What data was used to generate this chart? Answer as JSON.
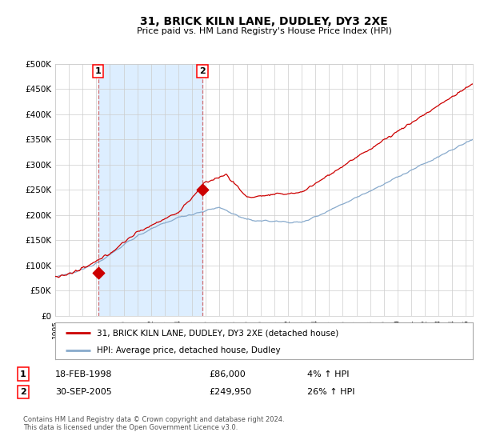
{
  "title": "31, BRICK KILN LANE, DUDLEY, DY3 2XE",
  "subtitle": "Price paid vs. HM Land Registry's House Price Index (HPI)",
  "purchase1_date": 1998.13,
  "purchase1_price": 86000,
  "purchase1_label": "1",
  "purchase1_text": "18-FEB-1998",
  "purchase1_amount": "£86,000",
  "purchase1_hpi": "4% ↑ HPI",
  "purchase2_date": 2005.75,
  "purchase2_price": 249950,
  "purchase2_label": "2",
  "purchase2_text": "30-SEP-2005",
  "purchase2_amount": "£249,950",
  "purchase2_hpi": "26% ↑ HPI",
  "legend_property": "31, BRICK KILN LANE, DUDLEY, DY3 2XE (detached house)",
  "legend_hpi": "HPI: Average price, detached house, Dudley",
  "footer": "Contains HM Land Registry data © Crown copyright and database right 2024.\nThis data is licensed under the Open Government Licence v3.0.",
  "red_color": "#cc0000",
  "blue_color": "#88aacc",
  "shade_color": "#ddeeff",
  "background_color": "#ffffff",
  "grid_color": "#cccccc",
  "ylim": [
    0,
    500000
  ],
  "xlim": [
    1995.0,
    2025.5
  ]
}
